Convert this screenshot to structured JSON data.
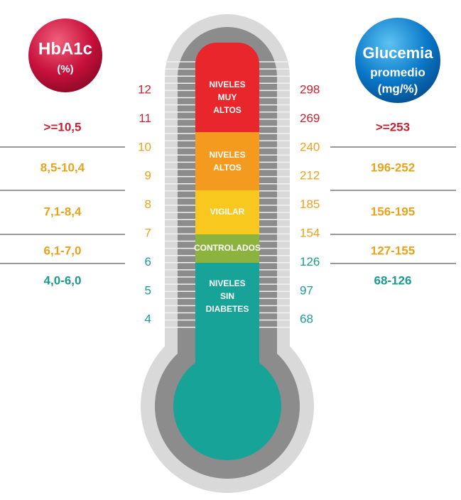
{
  "left_badge": {
    "title": "HbA1c",
    "unit": "(%)"
  },
  "right_badge": {
    "lines": [
      "Glucemia",
      "promedio",
      "(mg/%)"
    ]
  },
  "scale_rows": [
    {
      "hba1c": "12",
      "glucose": "298",
      "color": "#c62230"
    },
    {
      "hba1c": "11",
      "glucose": "269",
      "color": "#c62230"
    },
    {
      "hba1c": "10",
      "glucose": "240",
      "color": "#e8a21c"
    },
    {
      "hba1c": "9",
      "glucose": "212",
      "color": "#e8a21c"
    },
    {
      "hba1c": "8",
      "glucose": "185",
      "color": "#e8a21c"
    },
    {
      "hba1c": "7",
      "glucose": "154",
      "color": "#e8a21c"
    },
    {
      "hba1c": "6",
      "glucose": "126",
      "color": "#1b9b8e"
    },
    {
      "hba1c": "5",
      "glucose": "97",
      "color": "#1b9b8e"
    },
    {
      "hba1c": "4",
      "glucose": "68",
      "color": "#1b9b8e"
    }
  ],
  "ranges": [
    {
      "hba1c": ">=10,5",
      "glucose": ">=253",
      "color": "#c62230"
    },
    {
      "hba1c": "8,5-10,4",
      "glucose": "196-252",
      "color": "#e8a21c"
    },
    {
      "hba1c": "7,1-8,4",
      "glucose": "156-195",
      "color": "#e8a21c"
    },
    {
      "hba1c": "6,1-7,0",
      "glucose": "127-155",
      "color": "#e8a21c"
    },
    {
      "hba1c": "4,0-6,0",
      "glucose": "68-126",
      "color": "#1b9b8e"
    }
  ],
  "zones": [
    {
      "lines": [
        "NIVELES",
        "MUY",
        "ALTOS"
      ],
      "color": "#e8262b"
    },
    {
      "lines": [
        "NIVELES",
        "ALTOS"
      ],
      "color": "#f39a1f"
    },
    {
      "lines": [
        "VIGILAR"
      ],
      "color": "#f8c81e"
    },
    {
      "lines": [
        "CONTROLADOS"
      ],
      "color": "#8db33f"
    },
    {
      "lines": [
        "NIVELES",
        "SIN",
        "DIABETES"
      ],
      "color": "#17a398"
    }
  ]
}
